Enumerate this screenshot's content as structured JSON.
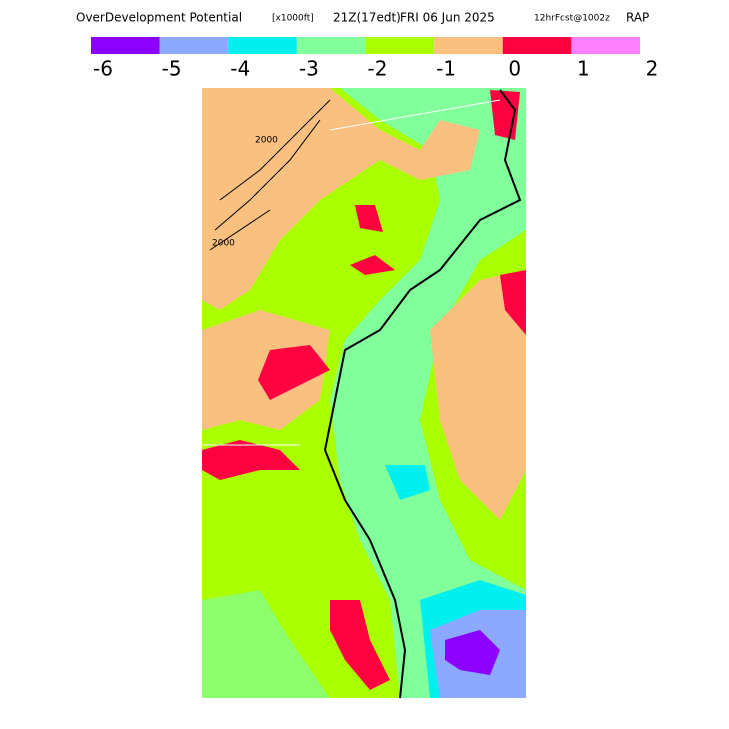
{
  "header": {
    "title": "OverDevelopment Potential",
    "units": "[x1000ft]",
    "valid": "21Z(17edt)",
    "date": "FRI 06 Jun 2025",
    "forecast": "12hrFcst@1002z",
    "model": "RAP"
  },
  "colorbar": {
    "ticks": [
      -6,
      -5,
      -4,
      -3,
      -2,
      -1,
      0,
      1,
      2
    ],
    "colors": [
      "#8c00ff",
      "#8ca8ff",
      "#00f0f0",
      "#80ff9a",
      "#aaff00",
      "#f9c080",
      "#ff0040",
      "#ff80ff"
    ]
  },
  "map": {
    "contour_label": "2000"
  }
}
